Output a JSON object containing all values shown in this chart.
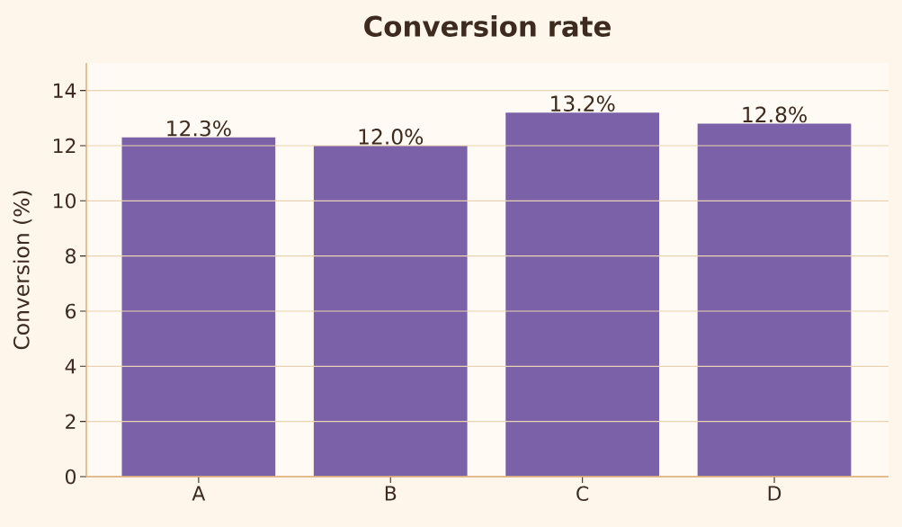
{
  "chart_data": {
    "type": "bar",
    "title": "Conversion rate",
    "ylabel": "Conversion (%)",
    "categories": [
      "A",
      "B",
      "C",
      "D"
    ],
    "values": [
      12.3,
      12.0,
      13.2,
      12.8
    ],
    "value_labels": [
      "12.3%",
      "12.0%",
      "13.2%",
      "12.8%"
    ],
    "color": "#7b62a8",
    "ylim": [
      0,
      15
    ],
    "yticks": [
      0,
      2,
      4,
      6,
      8,
      10,
      12,
      14
    ],
    "grid": "y"
  }
}
